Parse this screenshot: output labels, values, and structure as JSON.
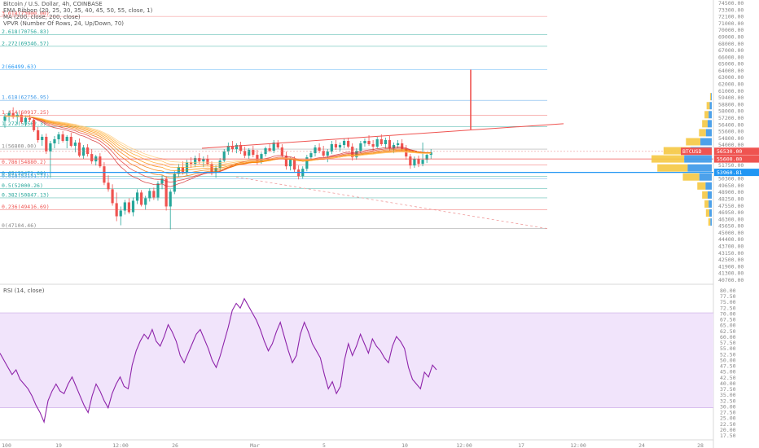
{
  "header": {
    "line1": "Bitcoin / U.S. Dollar, 4h, COINBASE",
    "line2": "EMA Ribbon (20, 25, 30, 35, 40, 45, 50, 55, close, 1)",
    "line3": "MA (200, close, 200, close)",
    "line4": "VPVR (Number Of Rows, 24, Up/Down, 70)"
  },
  "rsi_title": "RSI (14, close)",
  "colors": {
    "up": "#26a69a",
    "down": "#ef5350",
    "trendline": "#ef5350",
    "volume_up": "#f5c842",
    "volume_down": "#3a97e8",
    "rsi_line": "#8e24aa",
    "rsi_band": "#f1e4fb",
    "price_tag_red": "#ef5350",
    "price_tag_blue": "#2196f3"
  },
  "chart_data": [
    {
      "type": "candlestick",
      "title": "Bitcoin / U.S. Dollar, 4h, COINBASE",
      "y_axis_ticks": [
        "74500.00",
        "73300.00",
        "72100.00",
        "71000.00",
        "70000.00",
        "69000.00",
        "68000.00",
        "67000.00",
        "66000.00",
        "65000.00",
        "64000.00",
        "63000.00",
        "62000.00",
        "61000.00",
        "59400.00",
        "58800.00",
        "58000.00",
        "57200.00",
        "56400.00",
        "55600.00",
        "54800.00",
        "54000.00",
        "53200.00",
        "52400.00",
        "51750.00",
        "51000.00",
        "50300.00",
        "49650.00",
        "48900.00",
        "48250.00",
        "47550.00",
        "46950.00",
        "46300.00",
        "45650.00",
        "45000.00",
        "44400.00",
        "43700.00",
        "43150.00",
        "42500.00",
        "41900.00",
        "41300.00",
        "40700.00"
      ],
      "x_axis_ticks": [
        "100",
        "19",
        "12:00",
        "26",
        "Mar",
        "5",
        "10",
        "12:00",
        "17",
        "12:00",
        "24",
        "28"
      ],
      "fib_levels": [
        {
          "label": "3.618(73000.00)",
          "value": 73000
        },
        {
          "label": "2.618(70756.83)",
          "value": 70756.83
        },
        {
          "label": "2.272(69346.57)",
          "value": 69346.57
        },
        {
          "label": "2(66499.63)",
          "value": 66499.63
        },
        {
          "label": "1.618(62756.95)",
          "value": 62756.95
        },
        {
          "label": "1.414(60917.25)",
          "value": 60917.25
        },
        {
          "label": "1.272(59562.3)",
          "value": 59562.3
        },
        {
          "label": "1(56800.00)",
          "value": 56800
        },
        {
          "label": "0.786(54880.2)",
          "value": 54880.2
        },
        {
          "label": "0.65(53472.69)",
          "value": 53472.69
        },
        {
          "label": "0.618(53151.77)",
          "value": 53151.77
        },
        {
          "label": "0.5(52000.26)",
          "value": 52000.26
        },
        {
          "label": "0.382(50847.13)",
          "value": 50847.13
        },
        {
          "label": "0.236(49416.69)",
          "value": 49416.69
        },
        {
          "label": "0(47104.46)",
          "value": 47104.46
        }
      ],
      "price_tags": [
        {
          "label": "BTCUSD",
          "value": "56530.00",
          "color": "red"
        },
        {
          "label": "",
          "value": "55600.00",
          "color": "red"
        },
        {
          "label": "",
          "value": "53960.81",
          "color": "blue"
        }
      ],
      "ohlc": [
        [
          60250,
          61100,
          59400,
          60800
        ],
        [
          60800,
          61500,
          60200,
          61200
        ],
        [
          61200,
          61900,
          60500,
          60700
        ],
        [
          60700,
          61300,
          59800,
          61000
        ],
        [
          61000,
          61200,
          59900,
          60100
        ],
        [
          60100,
          60900,
          59600,
          60600
        ],
        [
          60600,
          61000,
          60100,
          60400
        ],
        [
          60400,
          60700,
          58900,
          59100
        ],
        [
          59100,
          59500,
          57600,
          57900
        ],
        [
          57900,
          58600,
          57200,
          58300
        ],
        [
          58300,
          58700,
          56200,
          56500
        ],
        [
          56500,
          57800,
          53300,
          57500
        ],
        [
          57500,
          58400,
          56900,
          58000
        ],
        [
          58000,
          58900,
          57400,
          58600
        ],
        [
          58600,
          59000,
          57600,
          57800
        ],
        [
          57800,
          58500,
          56900,
          58300
        ],
        [
          58300,
          58800,
          57000,
          57200
        ],
        [
          57200,
          57900,
          56400,
          57600
        ],
        [
          57600,
          58100,
          55800,
          56000
        ],
        [
          56000,
          57300,
          55600,
          57000
        ],
        [
          57000,
          57400,
          55900,
          56200
        ],
        [
          56200,
          56800,
          55000,
          55300
        ],
        [
          55300,
          56100,
          54800,
          55900
        ],
        [
          55900,
          56300,
          54500,
          54700
        ],
        [
          54700,
          55200,
          52400,
          52700
        ],
        [
          52700,
          53600,
          51600,
          51900
        ],
        [
          51900,
          52500,
          49900,
          50200
        ],
        [
          50200,
          51500,
          48000,
          48600
        ],
        [
          48600,
          49800,
          47500,
          49300
        ],
        [
          49300,
          50600,
          48800,
          50300
        ],
        [
          50300,
          50800,
          48900,
          49100
        ],
        [
          49100,
          50900,
          48600,
          50500
        ],
        [
          50500,
          51900,
          50100,
          51500
        ],
        [
          51500,
          51800,
          49800,
          50000
        ],
        [
          50000,
          51100,
          49400,
          50800
        ],
        [
          50800,
          52000,
          50400,
          51700
        ],
        [
          51700,
          52100,
          50600,
          50900
        ],
        [
          50900,
          52900,
          50500,
          52600
        ],
        [
          52600,
          53600,
          51900,
          53200
        ],
        [
          53200,
          53500,
          49300,
          49800
        ],
        [
          49800,
          51900,
          47000,
          51600
        ],
        [
          51600,
          54100,
          51300,
          53800
        ],
        [
          53800,
          55000,
          53400,
          54600
        ],
        [
          54600,
          55300,
          53700,
          54000
        ],
        [
          54000,
          55500,
          53600,
          55200
        ],
        [
          55200,
          55800,
          54500,
          55000
        ],
        [
          55000,
          56000,
          54600,
          55700
        ],
        [
          55700,
          56300,
          55000,
          55300
        ],
        [
          55300,
          55900,
          54600,
          55600
        ],
        [
          55600,
          56100,
          54800,
          55000
        ],
        [
          55000,
          55300,
          53600,
          53900
        ],
        [
          53900,
          54800,
          53300,
          54500
        ],
        [
          54500,
          55700,
          54200,
          55400
        ],
        [
          55400,
          56800,
          55200,
          56500
        ],
        [
          56500,
          57600,
          56100,
          57200
        ],
        [
          57200,
          57800,
          56400,
          56800
        ],
        [
          56800,
          57500,
          56300,
          57300
        ],
        [
          57300,
          57700,
          56200,
          56600
        ],
        [
          56600,
          57100,
          55700,
          56000
        ],
        [
          56000,
          56900,
          55600,
          56700
        ],
        [
          56700,
          57200,
          55800,
          56100
        ],
        [
          56100,
          56700,
          54900,
          55300
        ],
        [
          55300,
          56400,
          55000,
          56200
        ],
        [
          56200,
          57100,
          55900,
          56900
        ],
        [
          56900,
          57500,
          56400,
          56600
        ],
        [
          56600,
          57900,
          56300,
          57600
        ],
        [
          57600,
          57900,
          56800,
          57000
        ],
        [
          57000,
          57400,
          55600,
          56000
        ],
        [
          56000,
          56500,
          54300,
          54700
        ],
        [
          54700,
          55800,
          54200,
          55500
        ],
        [
          55500,
          55900,
          54000,
          54300
        ],
        [
          54300,
          54800,
          53100,
          53500
        ],
        [
          53500,
          54700,
          53200,
          54400
        ],
        [
          54400,
          56100,
          54100,
          55800
        ],
        [
          55800,
          56600,
          55500,
          56300
        ],
        [
          56300,
          57300,
          55900,
          57000
        ],
        [
          57000,
          57500,
          56300,
          56600
        ],
        [
          56600,
          57200,
          55800,
          56000
        ],
        [
          56000,
          56800,
          55200,
          56500
        ],
        [
          56500,
          57800,
          56200,
          57400
        ],
        [
          57400,
          57900,
          56700,
          57000
        ],
        [
          57000,
          57600,
          56500,
          57300
        ],
        [
          57300,
          58100,
          56900,
          57800
        ],
        [
          57800,
          58200,
          56900,
          57100
        ],
        [
          57100,
          57500,
          55400,
          55800
        ],
        [
          55800,
          56900,
          55500,
          56600
        ],
        [
          56600,
          57800,
          56300,
          57500
        ],
        [
          57500,
          58100,
          57100,
          57800
        ],
        [
          57800,
          58500,
          57200,
          57400
        ],
        [
          57400,
          57900,
          56600,
          57100
        ],
        [
          57100,
          58300,
          56900,
          58000
        ],
        [
          58000,
          58600,
          57200,
          57400
        ],
        [
          57400,
          58200,
          56900,
          57900
        ],
        [
          57900,
          58400,
          56600,
          56900
        ],
        [
          56900,
          57600,
          56300,
          57300
        ],
        [
          57300,
          57900,
          56900,
          57500
        ],
        [
          57500,
          58000,
          56500,
          56800
        ],
        [
          56800,
          57300,
          55500,
          55900
        ],
        [
          55900,
          56200,
          54400,
          54800
        ],
        [
          54800,
          55900,
          54500,
          55600
        ],
        [
          55600,
          56000,
          54600,
          55000
        ],
        [
          55000,
          57600,
          54700,
          55500
        ],
        [
          55500,
          56400,
          55100,
          56100
        ],
        [
          56100,
          56800,
          55600,
          56400
        ]
      ],
      "volume_profile": [
        {
          "price": 63200,
          "up": 3,
          "down": 2
        },
        {
          "price": 62100,
          "up": 9,
          "down": 6
        },
        {
          "price": 61000,
          "up": 12,
          "down": 9
        },
        {
          "price": 59900,
          "up": 16,
          "down": 12
        },
        {
          "price": 58800,
          "up": 20,
          "down": 17
        },
        {
          "price": 57700,
          "up": 42,
          "down": 33
        },
        {
          "price": 56600,
          "up": 78,
          "down": 62
        },
        {
          "price": 55600,
          "up": 95,
          "down": 80
        },
        {
          "price": 54500,
          "up": 88,
          "down": 70
        },
        {
          "price": 53400,
          "up": 48,
          "down": 36
        },
        {
          "price": 52300,
          "up": 24,
          "down": 18
        },
        {
          "price": 51200,
          "up": 16,
          "down": 12
        },
        {
          "price": 50100,
          "up": 12,
          "down": 9
        },
        {
          "price": 49000,
          "up": 10,
          "down": 7
        },
        {
          "price": 47900,
          "up": 6,
          "down": 4
        }
      ]
    },
    {
      "type": "line",
      "title": "RSI (14, close)",
      "y_axis_ticks": [
        "80.00",
        "77.50",
        "75.00",
        "72.50",
        "70.00",
        "67.50",
        "65.00",
        "62.50",
        "60.00",
        "57.50",
        "55.00",
        "52.50",
        "50.00",
        "47.50",
        "45.00",
        "42.50",
        "40.00",
        "37.50",
        "35.00",
        "32.50",
        "30.00",
        "27.50",
        "25.00",
        "22.50",
        "20.00",
        "17.50"
      ],
      "bands": [
        30,
        70
      ],
      "series": [
        {
          "values": [
            53,
            50,
            47,
            44,
            46,
            42,
            40,
            38,
            35,
            31,
            28,
            24,
            33,
            37,
            40,
            37,
            36,
            40,
            43,
            39,
            35,
            31,
            28,
            35,
            40,
            37,
            33,
            30,
            36,
            40,
            43,
            39,
            38,
            48,
            54,
            58,
            61,
            59,
            63,
            58,
            56,
            60,
            65,
            62,
            58,
            52,
            49,
            53,
            57,
            61,
            63,
            59,
            55,
            50,
            47,
            52,
            58,
            64,
            71,
            74,
            72,
            76,
            73,
            70,
            67,
            63,
            58,
            54,
            57,
            62,
            66,
            60,
            54,
            49,
            52,
            61,
            66,
            62,
            57,
            54,
            51,
            44,
            38,
            41,
            36,
            39,
            50,
            57,
            52,
            56,
            61,
            57,
            53,
            59,
            56,
            54,
            51,
            49,
            56,
            60,
            58,
            55,
            47,
            42,
            40,
            38,
            45,
            43,
            48,
            46
          ]
        }
      ],
      "x_axis_ticks": [
        "100",
        "19",
        "12:00",
        "26",
        "Mar",
        "5",
        "10",
        "12:00",
        "17",
        "12:00",
        "24",
        "28"
      ]
    }
  ]
}
